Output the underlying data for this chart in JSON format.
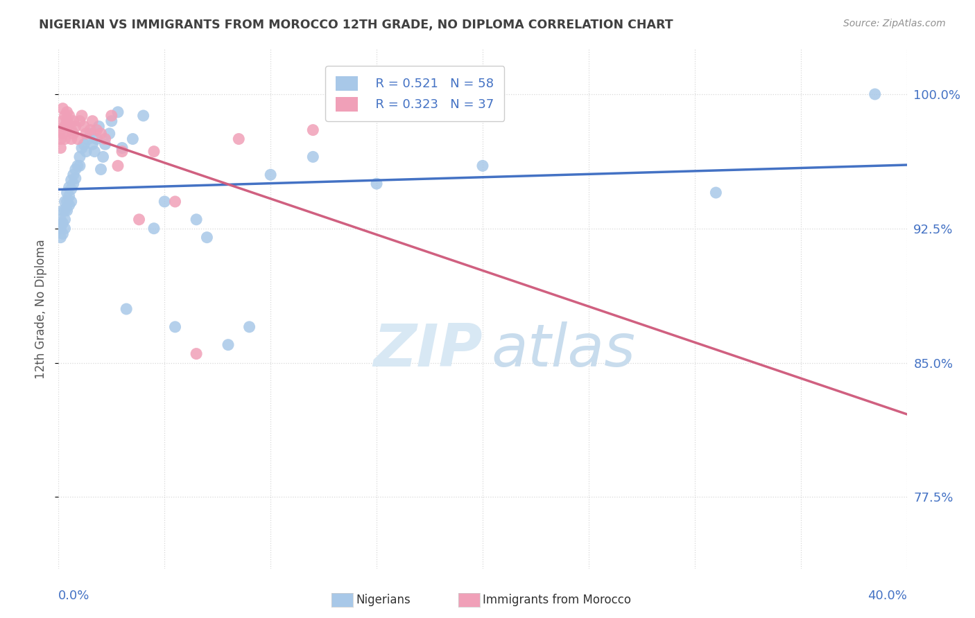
{
  "title": "NIGERIAN VS IMMIGRANTS FROM MOROCCO 12TH GRADE, NO DIPLOMA CORRELATION CHART",
  "source": "Source: ZipAtlas.com",
  "ylabel_label": "12th Grade, No Diploma",
  "legend_blue_label": "Nigerians",
  "legend_pink_label": "Immigrants from Morocco",
  "r_blue": "R = 0.521",
  "n_blue": "N = 58",
  "r_pink": "R = 0.323",
  "n_pink": "N = 37",
  "blue_color": "#a8c8e8",
  "pink_color": "#f0a0b8",
  "blue_line_color": "#4472c4",
  "pink_line_color": "#d06080",
  "title_color": "#404040",
  "source_color": "#909090",
  "axis_label_color": "#4472c4",
  "watermark_zip_color": "#d8e8f4",
  "watermark_atlas_color": "#c8dced",
  "grid_color": "#d8d8d8",
  "xmin": 0.0,
  "xmax": 0.4,
  "ymin": 0.735,
  "ymax": 1.025,
  "yticks": [
    1.0,
    0.925,
    0.85,
    0.775
  ],
  "ytick_labels": [
    "100.0%",
    "92.5%",
    "85.0%",
    "77.5%"
  ],
  "blue_x": [
    0.001,
    0.001,
    0.001,
    0.002,
    0.002,
    0.002,
    0.003,
    0.003,
    0.003,
    0.003,
    0.004,
    0.004,
    0.004,
    0.005,
    0.005,
    0.005,
    0.006,
    0.006,
    0.006,
    0.007,
    0.007,
    0.008,
    0.008,
    0.009,
    0.01,
    0.01,
    0.011,
    0.012,
    0.013,
    0.014,
    0.015,
    0.016,
    0.017,
    0.018,
    0.019,
    0.02,
    0.021,
    0.022,
    0.024,
    0.025,
    0.028,
    0.03,
    0.032,
    0.035,
    0.04,
    0.045,
    0.05,
    0.055,
    0.065,
    0.07,
    0.08,
    0.09,
    0.1,
    0.12,
    0.15,
    0.2,
    0.31,
    0.385
  ],
  "blue_y": [
    0.93,
    0.925,
    0.92,
    0.935,
    0.928,
    0.922,
    0.94,
    0.935,
    0.93,
    0.925,
    0.945,
    0.94,
    0.935,
    0.948,
    0.943,
    0.938,
    0.952,
    0.947,
    0.94,
    0.955,
    0.95,
    0.958,
    0.953,
    0.96,
    0.965,
    0.96,
    0.97,
    0.972,
    0.968,
    0.975,
    0.978,
    0.972,
    0.968,
    0.975,
    0.982,
    0.958,
    0.965,
    0.972,
    0.978,
    0.985,
    0.99,
    0.97,
    0.88,
    0.975,
    0.988,
    0.925,
    0.94,
    0.87,
    0.93,
    0.92,
    0.86,
    0.87,
    0.955,
    0.965,
    0.95,
    0.96,
    0.945,
    1.0
  ],
  "pink_x": [
    0.001,
    0.001,
    0.001,
    0.002,
    0.002,
    0.002,
    0.003,
    0.003,
    0.003,
    0.004,
    0.004,
    0.005,
    0.005,
    0.006,
    0.006,
    0.007,
    0.007,
    0.008,
    0.009,
    0.01,
    0.011,
    0.012,
    0.013,
    0.015,
    0.016,
    0.018,
    0.02,
    0.022,
    0.025,
    0.028,
    0.03,
    0.038,
    0.045,
    0.055,
    0.065,
    0.085,
    0.12
  ],
  "pink_y": [
    0.97,
    0.975,
    0.98,
    0.985,
    0.978,
    0.992,
    0.988,
    0.982,
    0.975,
    0.99,
    0.985,
    0.988,
    0.983,
    0.98,
    0.975,
    0.985,
    0.978,
    0.982,
    0.975,
    0.985,
    0.988,
    0.982,
    0.978,
    0.98,
    0.985,
    0.98,
    0.978,
    0.975,
    0.988,
    0.96,
    0.968,
    0.93,
    0.968,
    0.94,
    0.855,
    0.975,
    0.98
  ]
}
